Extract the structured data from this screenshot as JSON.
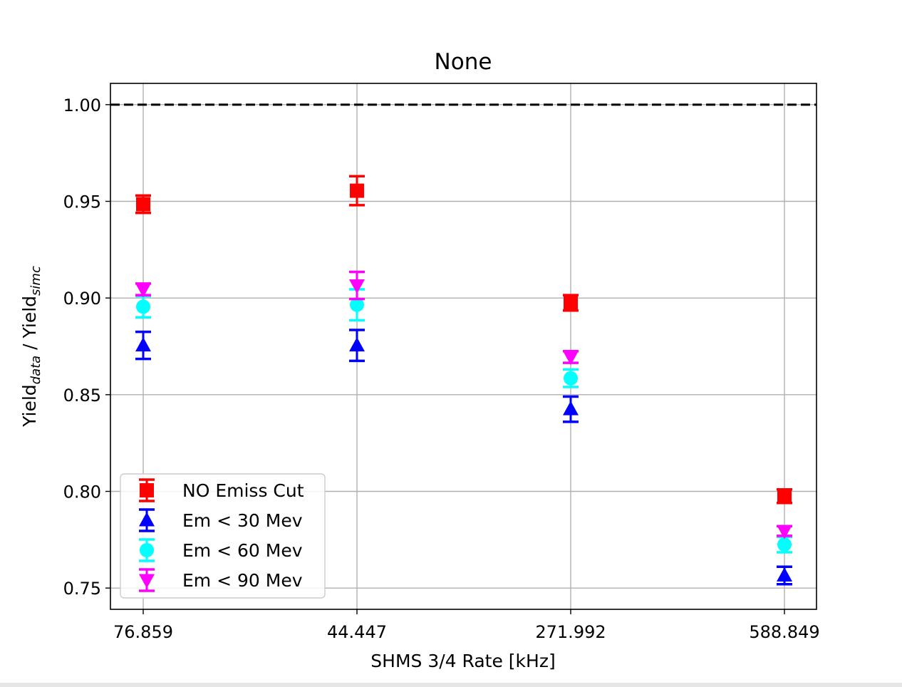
{
  "chart_data": {
    "type": "scatter",
    "title": "None",
    "xlabel": "SHMS 3/4 Rate [kHz]",
    "ylabel": {
      "base1": "Yield",
      "sub1": "data",
      "mid": " / Yield",
      "sub2": "simc"
    },
    "categories": [
      "76.859",
      "44.447",
      "271.992",
      "588.849"
    ],
    "ylim": [
      0.739,
      1.011
    ],
    "yticks": [
      0.75,
      0.8,
      0.85,
      0.9,
      0.95,
      1.0
    ],
    "ytick_labels": [
      "0.75",
      "0.80",
      "0.85",
      "0.90",
      "0.95",
      "1.00"
    ],
    "grid": true,
    "reference_line": {
      "y": 1.0,
      "style": "dashed",
      "color": "#000000"
    },
    "legend_position": "lower-left",
    "series": [
      {
        "name": "NO Emiss Cut",
        "marker": "square",
        "color": "#ff0000",
        "values": [
          0.9485,
          0.9555,
          0.8975,
          0.7975
        ],
        "errors": [
          0.0045,
          0.0075,
          0.004,
          0.0035
        ]
      },
      {
        "name": "Em < 30 Mev",
        "marker": "triangle-up",
        "color": "#0000ff",
        "values": [
          0.8755,
          0.8755,
          0.8425,
          0.7565
        ],
        "errors": [
          0.007,
          0.008,
          0.0065,
          0.0045
        ]
      },
      {
        "name": "Em < 60 Mev",
        "marker": "circle",
        "color": "#00ffff",
        "values": [
          0.8955,
          0.8965,
          0.8585,
          0.7725
        ],
        "errors": [
          0.0055,
          0.008,
          0.0045,
          0.004
        ]
      },
      {
        "name": "Em < 90 Mev",
        "marker": "triangle-down",
        "color": "#ff00ff",
        "values": [
          0.9045,
          0.9065,
          0.8695,
          0.7795
        ],
        "errors": [
          0.003,
          0.007,
          0.003,
          0.0025
        ]
      }
    ]
  }
}
